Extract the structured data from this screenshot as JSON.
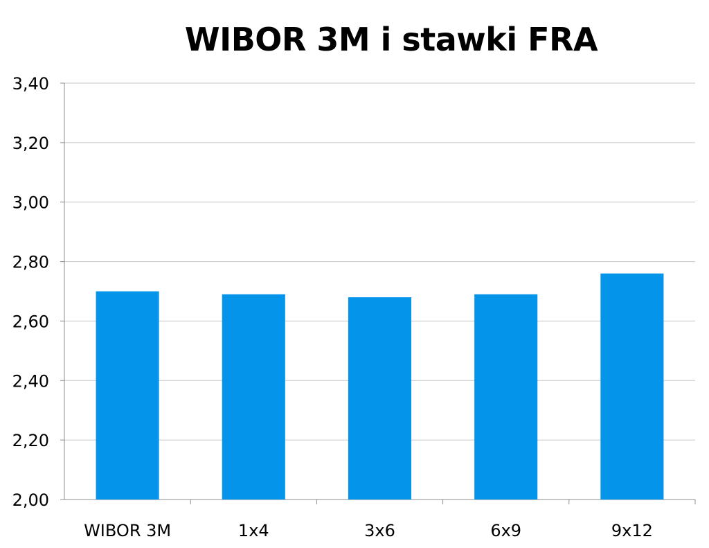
{
  "chart_data": {
    "type": "bar",
    "title": "WIBOR 3M i stawki FRA",
    "categories": [
      "WIBOR 3M",
      "1x4",
      "3x6",
      "6x9",
      "9x12"
    ],
    "values": [
      2.7,
      2.69,
      2.68,
      2.69,
      2.76
    ],
    "ylim": [
      2.0,
      3.4
    ],
    "yticks": [
      "2,00",
      "2,20",
      "2,40",
      "2,60",
      "2,80",
      "3,00",
      "3,20",
      "3,40"
    ],
    "xlabel": "",
    "ylabel": "",
    "grid": true,
    "legend": "none",
    "bar_color": "#0494EA"
  }
}
